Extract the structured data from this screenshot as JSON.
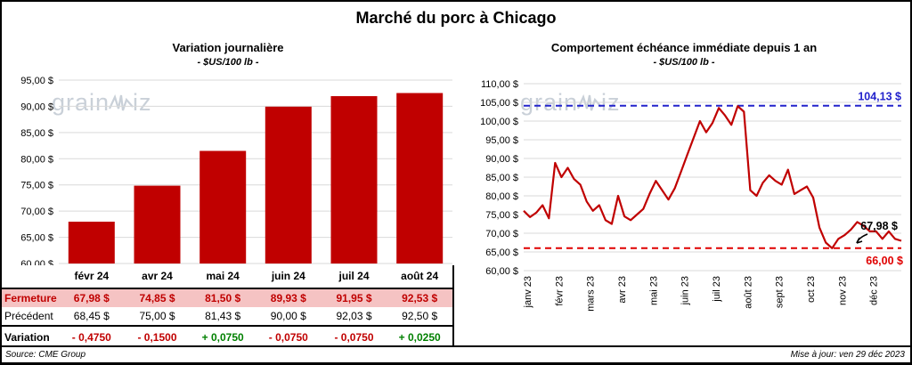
{
  "page": {
    "title": "Marché du porc à Chicago",
    "footer_source": "Source: CME Group",
    "footer_updated": "Mise à jour: ven 29 déc 2023",
    "watermark_prefix": "grain",
    "watermark_suffix": "iz"
  },
  "left_panel": {
    "title": "Variation journalière",
    "subtitle": "- $US/100 lb -",
    "table": {
      "row_labels": [
        "Fermeture",
        "Précédent",
        "Variation"
      ],
      "fermeture": [
        "67,98 $",
        "74,85 $",
        "81,50 $",
        "89,93 $",
        "91,95 $",
        "92,53 $"
      ],
      "precedent": [
        "68,45 $",
        "75,00 $",
        "81,43 $",
        "90,00 $",
        "92,03 $",
        "92,50 $"
      ],
      "variation": [
        "- 0,4750",
        "- 0,1500",
        "+ 0,0750",
        "- 0,0750",
        "- 0,0750",
        "+ 0,0250"
      ]
    }
  },
  "right_panel": {
    "title": "Comportement échéance immédiate depuis 1 an",
    "subtitle": "- $US/100 lb -"
  },
  "colors": {
    "series_red": "#c00000",
    "fermeture_row_bg": "#f5c3c3",
    "negative": "#c00000",
    "positive": "#008000",
    "ref_high_blue": "#2323cc",
    "ref_low_red": "#e00000",
    "grid_gray": "#d9d9d9",
    "watermark_gray": "#c9d0d8"
  },
  "chart_data": [
    {
      "type": "bar",
      "title": "Variation journalière",
      "subtitle": "- $US/100 lb -",
      "categories": [
        "févr 24",
        "avr 24",
        "mai 24",
        "juin 24",
        "juil 24",
        "août 24"
      ],
      "values": [
        67.98,
        74.85,
        81.5,
        89.93,
        91.95,
        92.53
      ],
      "ylim": [
        60,
        95
      ],
      "ytick_step": 5,
      "bar_color": "#c00000",
      "grid": true,
      "ytick_format": "fr_dollar"
    },
    {
      "type": "line",
      "title": "Comportement échéance immédiate depuis 1 an",
      "subtitle": "- $US/100 lb -",
      "x_labels": [
        "janv 23",
        "févr 23",
        "mars 23",
        "avr 23",
        "mai 23",
        "juin 23",
        "juil 23",
        "août 23",
        "sept 23",
        "oct 23",
        "nov 23",
        "déc 23"
      ],
      "values": [
        76.0,
        74.3,
        75.5,
        77.5,
        74.0,
        88.8,
        85.0,
        87.5,
        84.5,
        83.0,
        78.5,
        76.0,
        77.5,
        73.5,
        72.5,
        80.0,
        74.5,
        73.5,
        75.0,
        76.5,
        80.5,
        84.0,
        81.5,
        79.0,
        82.0,
        86.5,
        91.0,
        95.5,
        100.0,
        97.0,
        99.5,
        103.5,
        101.5,
        99.0,
        104.0,
        102.5,
        81.5,
        80.0,
        83.5,
        85.5,
        84.0,
        83.0,
        87.0,
        80.5,
        81.5,
        82.5,
        79.5,
        71.5,
        67.5,
        66.0,
        68.5,
        69.5,
        71.0,
        73.0,
        72.0,
        70.5,
        70.5,
        68.5,
        70.5,
        68.5,
        67.98
      ],
      "ylim": [
        60,
        110
      ],
      "ytick_step": 5,
      "line_color": "#c00000",
      "grid": true,
      "ref_lines": [
        {
          "value": 104.13,
          "color": "#2323cc",
          "label": "104,13 $",
          "position": "high"
        },
        {
          "value": 66.0,
          "color": "#e00000",
          "label": "66,00 $",
          "position": "low"
        }
      ],
      "last_label": {
        "value": 67.98,
        "text": "67,98 $"
      }
    }
  ]
}
